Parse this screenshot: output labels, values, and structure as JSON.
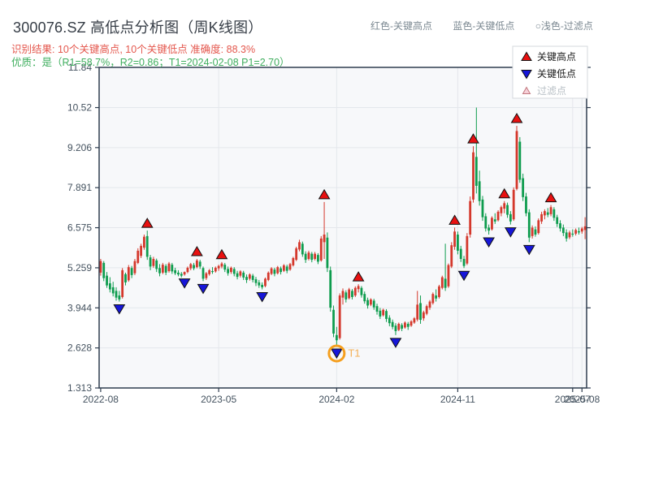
{
  "header": {
    "title": "300076.SZ 高低点分析图（周K线图）",
    "result": "识别结果: 10个关键高点, 10个关键低点  准确度: 88.3%",
    "quality": "优质：是（R1=58.7%，R2=0.86；T1=2024-02-08 P1=2.70）",
    "top_legend": [
      "红色-关键高点",
      "蓝色-关键低点",
      "○浅色-过滤点"
    ]
  },
  "legend": {
    "items": [
      {
        "label": "关键高点",
        "marker": "up-triangle",
        "fill": "#e81010",
        "text_color": "#1c1c1c"
      },
      {
        "label": "关键低点",
        "marker": "down-triangle",
        "fill": "#1616d9",
        "text_color": "#1c1c1c"
      },
      {
        "label": "过滤点",
        "marker": "open-triangle",
        "fill": "#f6d0d8",
        "text_color": "#b9c0c6"
      }
    ]
  },
  "colors": {
    "up": "#d4382c",
    "down": "#0e9c4e",
    "key_high": "#e81010",
    "key_low": "#1616d9",
    "marker_edge": "#111111",
    "t1_ring": "#f59f1e",
    "t1_text": "#f3b056",
    "grid": "#e4e7ec",
    "plot_bg": "#f7f8fa",
    "axis": "#2e3d4f",
    "tick_label": "#44525f",
    "legend_border": "#d5d9dd"
  },
  "chart_data": {
    "type": "candlestick",
    "title": "300076.SZ 高低点分析图（周K线图）",
    "frequency": "weekly",
    "ylim": [
      1.313,
      11.84
    ],
    "grid": true,
    "y_ticks": [
      1.313,
      2.628,
      3.944,
      5.259,
      6.575,
      7.891,
      9.206,
      10.52,
      11.84
    ],
    "y_tick_labels": [
      "1.313",
      "2.628",
      "3.944",
      "5.259",
      "6.575",
      "7.891",
      "9.206",
      "10.52",
      "11.84"
    ],
    "x_ticks": [
      {
        "index": 0,
        "label": "2022-08"
      },
      {
        "index": 38,
        "label": "2023-05"
      },
      {
        "index": 76,
        "label": "2024-02"
      },
      {
        "index": 115,
        "label": "2024-11"
      },
      {
        "index": 152,
        "label": "2025-07"
      },
      {
        "index": 155,
        "label": "2025-08"
      }
    ],
    "key_high_indices": [
      15,
      31,
      39,
      72,
      83,
      114,
      120,
      130,
      134,
      145
    ],
    "key_low_indices": [
      6,
      27,
      33,
      52,
      76,
      95,
      117,
      125,
      132,
      138
    ],
    "t1": {
      "index": 76,
      "label": "T1",
      "date": "2024-02-08",
      "price": 2.7
    },
    "ohlc": [
      [
        5.1,
        5.55,
        5.0,
        5.48
      ],
      [
        5.42,
        5.48,
        4.82,
        4.92
      ],
      [
        5.0,
        5.12,
        4.6,
        4.68
      ],
      [
        4.75,
        4.95,
        4.45,
        4.55
      ],
      [
        4.62,
        4.8,
        4.32,
        4.42
      ],
      [
        4.5,
        4.62,
        4.18,
        4.28
      ],
      [
        4.35,
        4.5,
        4.15,
        4.22
      ],
      [
        4.3,
        5.25,
        4.25,
        5.18
      ],
      [
        5.05,
        5.1,
        4.68,
        4.78
      ],
      [
        4.85,
        5.35,
        4.8,
        5.28
      ],
      [
        5.25,
        5.32,
        4.92,
        5.02
      ],
      [
        5.08,
        5.55,
        5.02,
        5.48
      ],
      [
        5.42,
        5.9,
        5.38,
        5.82
      ],
      [
        5.65,
        6.05,
        5.58,
        5.98
      ],
      [
        5.92,
        6.35,
        5.85,
        6.28
      ],
      [
        6.3,
        6.48,
        5.52,
        5.62
      ],
      [
        5.6,
        5.68,
        5.18,
        5.3
      ],
      [
        5.32,
        5.62,
        5.26,
        5.55
      ],
      [
        5.5,
        5.56,
        5.12,
        5.22
      ],
      [
        5.25,
        5.38,
        4.98,
        5.08
      ],
      [
        5.1,
        5.42,
        5.05,
        5.36
      ],
      [
        5.32,
        5.38,
        5.02,
        5.1
      ],
      [
        5.15,
        5.45,
        5.1,
        5.4
      ],
      [
        5.36,
        5.42,
        5.06,
        5.14
      ],
      [
        5.18,
        5.26,
        5.02,
        5.08
      ],
      [
        5.1,
        5.18,
        4.98,
        5.04
      ],
      [
        5.06,
        5.12,
        4.94,
        5.0
      ],
      [
        5.04,
        5.14,
        5.0,
        5.12
      ],
      [
        5.12,
        5.3,
        5.08,
        5.26
      ],
      [
        5.24,
        5.42,
        5.18,
        5.38
      ],
      [
        5.35,
        5.42,
        5.18,
        5.24
      ],
      [
        5.28,
        5.55,
        5.24,
        5.5
      ],
      [
        5.46,
        5.52,
        5.22,
        5.3
      ],
      [
        5.25,
        5.3,
        4.82,
        4.9
      ],
      [
        4.92,
        5.12,
        4.86,
        5.08
      ],
      [
        5.05,
        5.22,
        5.0,
        5.18
      ],
      [
        5.15,
        5.28,
        5.06,
        5.12
      ],
      [
        5.14,
        5.3,
        5.1,
        5.26
      ],
      [
        5.24,
        5.36,
        5.16,
        5.32
      ],
      [
        5.3,
        5.45,
        5.24,
        5.4
      ],
      [
        5.36,
        5.42,
        5.12,
        5.2
      ],
      [
        5.22,
        5.3,
        5.0,
        5.08
      ],
      [
        5.12,
        5.3,
        5.06,
        5.26
      ],
      [
        5.22,
        5.28,
        4.98,
        5.06
      ],
      [
        5.08,
        5.16,
        4.88,
        4.96
      ],
      [
        5.0,
        5.18,
        4.94,
        5.14
      ],
      [
        5.1,
        5.16,
        4.86,
        4.94
      ],
      [
        4.96,
        5.04,
        4.76,
        4.86
      ],
      [
        4.9,
        5.08,
        4.84,
        5.04
      ],
      [
        5.0,
        5.06,
        4.78,
        4.86
      ],
      [
        4.88,
        4.96,
        4.66,
        4.76
      ],
      [
        4.78,
        4.86,
        4.6,
        4.68
      ],
      [
        4.7,
        4.78,
        4.55,
        4.62
      ],
      [
        4.66,
        4.94,
        4.62,
        4.9
      ],
      [
        4.86,
        5.14,
        4.82,
        5.1
      ],
      [
        5.06,
        5.28,
        5.02,
        5.24
      ],
      [
        5.2,
        5.26,
        4.98,
        5.06
      ],
      [
        5.08,
        5.32,
        5.04,
        5.28
      ],
      [
        5.24,
        5.3,
        5.04,
        5.12
      ],
      [
        5.16,
        5.38,
        5.12,
        5.34
      ],
      [
        5.3,
        5.36,
        5.08,
        5.16
      ],
      [
        5.2,
        5.42,
        5.16,
        5.38
      ],
      [
        5.34,
        5.62,
        5.3,
        5.58
      ],
      [
        5.52,
        5.95,
        5.48,
        5.9
      ],
      [
        5.86,
        6.18,
        5.8,
        6.1
      ],
      [
        6.05,
        6.12,
        5.62,
        5.7
      ],
      [
        5.72,
        5.8,
        5.42,
        5.52
      ],
      [
        5.55,
        5.82,
        5.5,
        5.76
      ],
      [
        5.72,
        5.78,
        5.44,
        5.52
      ],
      [
        5.55,
        5.78,
        5.5,
        5.72
      ],
      [
        5.68,
        5.74,
        5.38,
        5.46
      ],
      [
        5.5,
        6.3,
        5.46,
        6.22
      ],
      [
        6.1,
        7.42,
        5.55,
        6.35
      ],
      [
        6.25,
        6.42,
        5.12,
        5.25
      ],
      [
        5.18,
        5.3,
        3.82,
        3.95
      ],
      [
        3.88,
        4.02,
        2.98,
        3.1
      ],
      [
        3.05,
        3.32,
        2.7,
        2.88
      ],
      [
        2.95,
        4.42,
        2.9,
        4.35
      ],
      [
        4.28,
        4.58,
        4.05,
        4.5
      ],
      [
        4.45,
        4.52,
        4.12,
        4.22
      ],
      [
        4.26,
        4.6,
        4.22,
        4.55
      ],
      [
        4.5,
        4.56,
        4.22,
        4.3
      ],
      [
        4.35,
        4.65,
        4.3,
        4.6
      ],
      [
        4.56,
        4.72,
        4.45,
        4.66
      ],
      [
        4.6,
        4.66,
        4.28,
        4.36
      ],
      [
        4.4,
        4.48,
        4.08,
        4.16
      ],
      [
        4.2,
        4.28,
        3.92,
        4.02
      ],
      [
        4.05,
        4.26,
        4.0,
        4.22
      ],
      [
        4.18,
        4.24,
        3.88,
        3.96
      ],
      [
        4.0,
        4.08,
        3.72,
        3.82
      ],
      [
        3.85,
        3.94,
        3.58,
        3.66
      ],
      [
        3.7,
        3.92,
        3.66,
        3.88
      ],
      [
        3.84,
        3.9,
        3.48,
        3.58
      ],
      [
        3.62,
        3.7,
        3.34,
        3.44
      ],
      [
        3.48,
        3.56,
        3.24,
        3.32
      ],
      [
        3.36,
        3.44,
        3.05,
        3.18
      ],
      [
        3.22,
        3.46,
        3.18,
        3.42
      ],
      [
        3.38,
        3.44,
        3.18,
        3.26
      ],
      [
        3.3,
        3.5,
        3.26,
        3.46
      ],
      [
        3.42,
        3.48,
        3.22,
        3.32
      ],
      [
        3.36,
        3.54,
        3.32,
        3.5
      ],
      [
        3.46,
        3.64,
        3.42,
        3.6
      ],
      [
        3.56,
        4.5,
        3.5,
        4.05
      ],
      [
        4.1,
        4.35,
        3.42,
        3.55
      ],
      [
        3.6,
        3.85,
        3.52,
        3.8
      ],
      [
        3.75,
        4.05,
        3.7,
        4.0
      ],
      [
        3.95,
        4.2,
        3.88,
        4.15
      ],
      [
        4.1,
        4.45,
        4.05,
        4.4
      ],
      [
        4.35,
        4.55,
        4.15,
        4.25
      ],
      [
        4.3,
        4.7,
        4.25,
        4.65
      ],
      [
        4.6,
        5.0,
        4.55,
        4.95
      ],
      [
        4.9,
        6.05,
        4.5,
        4.6
      ],
      [
        4.65,
        5.4,
        4.6,
        5.35
      ],
      [
        5.3,
        6.1,
        5.25,
        6.0
      ],
      [
        5.95,
        6.58,
        5.85,
        6.45
      ],
      [
        6.35,
        6.45,
        5.7,
        5.82
      ],
      [
        5.88,
        5.98,
        5.45,
        5.55
      ],
      [
        5.55,
        5.65,
        5.25,
        5.32
      ],
      [
        5.4,
        6.4,
        5.35,
        6.3
      ],
      [
        6.35,
        7.6,
        6.25,
        7.45
      ],
      [
        7.5,
        9.25,
        7.4,
        9.05
      ],
      [
        8.9,
        10.52,
        7.7,
        7.95
      ],
      [
        8.1,
        8.45,
        7.3,
        7.45
      ],
      [
        7.5,
        7.62,
        6.8,
        6.92
      ],
      [
        6.95,
        7.05,
        6.45,
        6.55
      ],
      [
        6.58,
        6.68,
        6.35,
        6.48
      ],
      [
        6.52,
        6.95,
        6.48,
        6.9
      ],
      [
        6.85,
        7.05,
        6.7,
        6.78
      ],
      [
        6.82,
        7.15,
        6.78,
        7.1
      ],
      [
        7.05,
        7.3,
        6.95,
        7.25
      ],
      [
        7.2,
        7.45,
        7.05,
        7.38
      ],
      [
        7.32,
        7.4,
        6.9,
        7.0
      ],
      [
        7.02,
        7.12,
        6.68,
        6.78
      ],
      [
        6.85,
        7.9,
        6.8,
        7.82
      ],
      [
        7.85,
        9.92,
        7.8,
        9.75
      ],
      [
        9.4,
        9.55,
        8.05,
        8.15
      ],
      [
        8.2,
        8.35,
        7.45,
        7.58
      ],
      [
        7.6,
        7.72,
        6.95,
        7.05
      ],
      [
        7.08,
        7.18,
        6.1,
        6.25
      ],
      [
        6.3,
        6.65,
        6.22,
        6.58
      ],
      [
        6.52,
        6.62,
        6.28,
        6.35
      ],
      [
        6.4,
        6.88,
        6.35,
        6.82
      ],
      [
        6.78,
        7.1,
        6.7,
        7.02
      ],
      [
        6.98,
        7.18,
        6.85,
        7.12
      ],
      [
        7.08,
        7.22,
        6.92,
        7.0
      ],
      [
        7.02,
        7.32,
        6.95,
        7.25
      ],
      [
        7.18,
        7.25,
        6.8,
        6.9
      ],
      [
        6.92,
        7.0,
        6.6,
        6.7
      ],
      [
        6.72,
        6.82,
        6.45,
        6.55
      ],
      [
        6.58,
        6.68,
        6.3,
        6.4
      ],
      [
        6.42,
        6.52,
        6.12,
        6.22
      ],
      [
        6.26,
        6.48,
        6.2,
        6.42
      ],
      [
        6.38,
        6.52,
        6.28,
        6.35
      ],
      [
        6.38,
        6.55,
        6.32,
        6.5
      ],
      [
        6.46,
        6.58,
        6.35,
        6.42
      ],
      [
        6.45,
        6.6,
        6.38,
        6.55
      ],
      [
        6.5,
        6.92,
        6.2,
        6.62
      ]
    ]
  }
}
